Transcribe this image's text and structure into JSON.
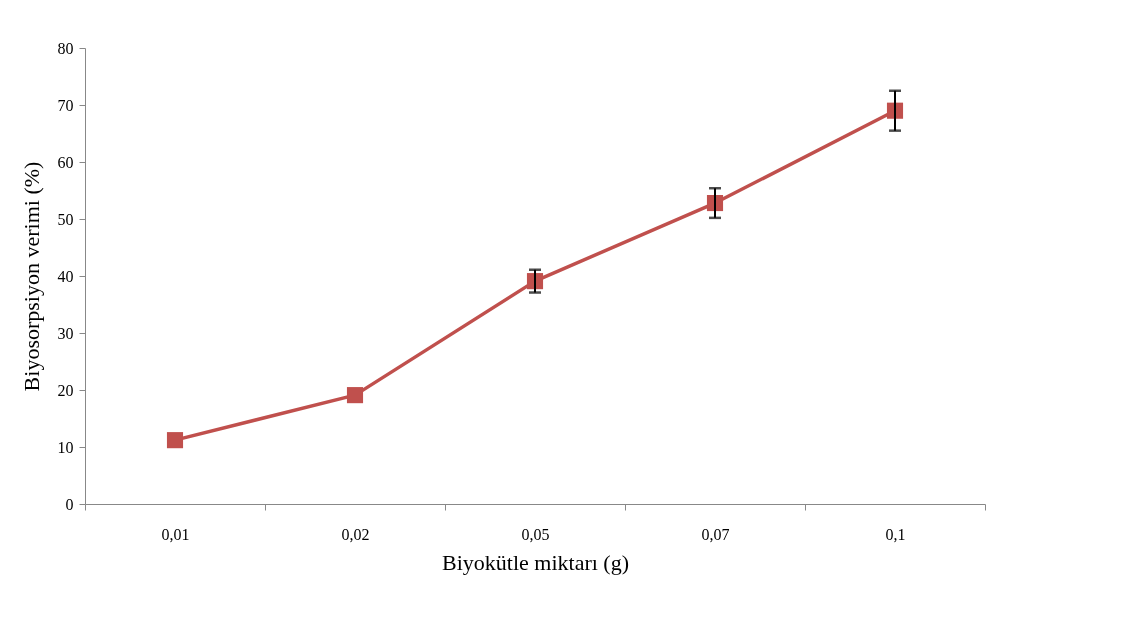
{
  "chart_data": {
    "type": "line",
    "xlabel": "Biyokütle miktarı (g)",
    "ylabel": "Biyosorpsiyon verimi (%)",
    "categories": [
      "0,01",
      "0,02",
      "0,05",
      "0,07",
      "0,1"
    ],
    "series": [
      {
        "color": "#c0504d",
        "values": [
          11.2,
          19.1,
          39.1,
          52.8,
          69.0
        ],
        "errors": [
          null,
          null,
          2,
          2.6,
          3.5
        ]
      }
    ],
    "ylim": [
      0,
      80
    ],
    "yticks": [
      0,
      10,
      20,
      30,
      40,
      50,
      60,
      70,
      80
    ],
    "marker": "square",
    "line_style": "solid"
  }
}
